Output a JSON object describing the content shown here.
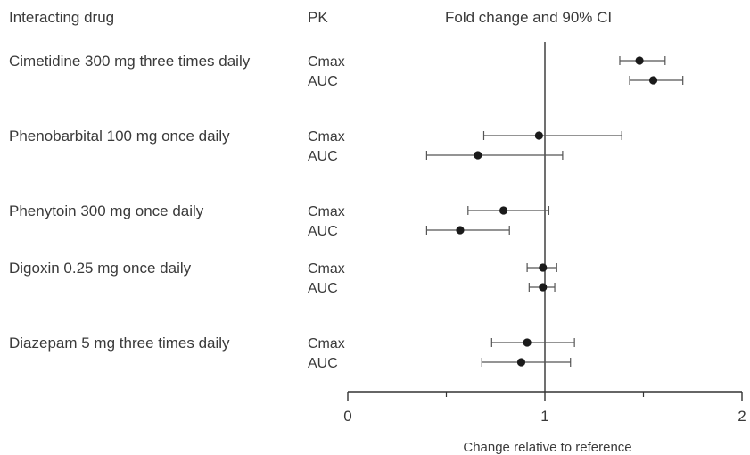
{
  "headers": {
    "drug": "Interacting drug",
    "pk": "PK",
    "estimate": "Fold change and 90% CI"
  },
  "chart_data": {
    "type": "forest",
    "xlabel": "Change relative to reference",
    "xlim": [
      0,
      2
    ],
    "xticks": [
      "0",
      "1",
      "2"
    ],
    "reference_line": 1,
    "groups": [
      {
        "drug": "Cimetidine 300 mg three times daily",
        "rows": [
          {
            "pk": "Cmax",
            "estimate": 1.48,
            "ci_low": 1.38,
            "ci_high": 1.61
          },
          {
            "pk": "AUC",
            "estimate": 1.55,
            "ci_low": 1.43,
            "ci_high": 1.7
          }
        ]
      },
      {
        "drug": "Phenobarbital 100 mg once daily",
        "rows": [
          {
            "pk": "Cmax",
            "estimate": 0.97,
            "ci_low": 0.69,
            "ci_high": 1.39
          },
          {
            "pk": "AUC",
            "estimate": 0.66,
            "ci_low": 0.4,
            "ci_high": 1.09
          }
        ]
      },
      {
        "drug": "Phenytoin 300 mg once daily",
        "rows": [
          {
            "pk": "Cmax",
            "estimate": 0.79,
            "ci_low": 0.61,
            "ci_high": 1.02
          },
          {
            "pk": "AUC",
            "estimate": 0.57,
            "ci_low": 0.4,
            "ci_high": 0.82
          }
        ]
      },
      {
        "drug": "Digoxin 0.25 mg once daily",
        "rows": [
          {
            "pk": "Cmax",
            "estimate": 0.99,
            "ci_low": 0.91,
            "ci_high": 1.06
          },
          {
            "pk": "AUC",
            "estimate": 0.99,
            "ci_low": 0.92,
            "ci_high": 1.05
          }
        ]
      },
      {
        "drug": "Diazepam 5 mg three times daily",
        "rows": [
          {
            "pk": "Cmax",
            "estimate": 0.91,
            "ci_low": 0.73,
            "ci_high": 1.15
          },
          {
            "pk": "AUC",
            "estimate": 0.88,
            "ci_low": 0.68,
            "ci_high": 1.13
          }
        ]
      }
    ]
  }
}
